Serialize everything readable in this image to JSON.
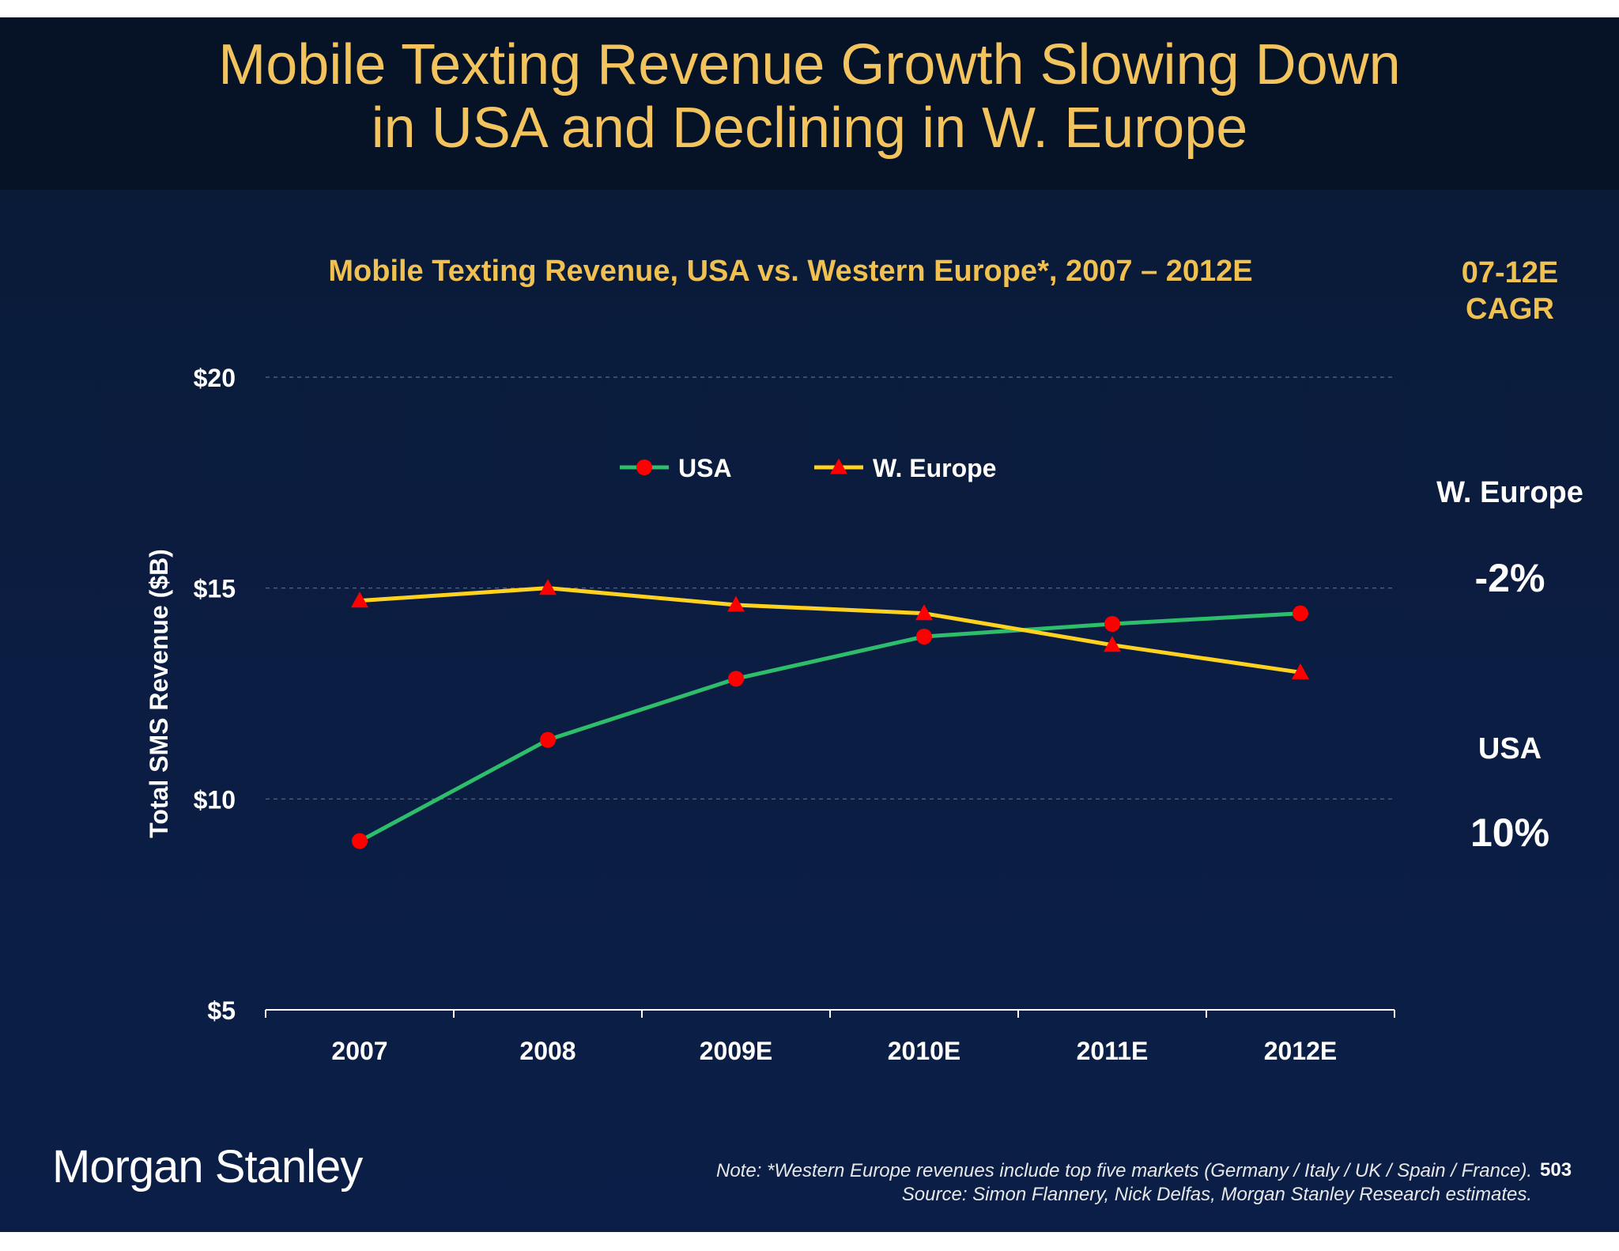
{
  "title": "Mobile Texting Revenue Growth Slowing Down\nin USA and Declining in W. Europe",
  "cagr": {
    "header": "07-12E\nCAGR",
    "items": [
      {
        "region": "W. Europe",
        "value": "-2%"
      },
      {
        "region": "USA",
        "value": "10%"
      }
    ]
  },
  "logo": "Morgan Stanley",
  "footnote": {
    "note": "Note: *Western Europe revenues include top five markets (Germany / Italy / UK / Spain / France).",
    "source": "Source: Simon Flannery, Nick Delfas, Morgan Stanley Research estimates."
  },
  "page_number": "503",
  "colors": {
    "usa_line": "#2ebd6b",
    "europe_line": "#ffd21f",
    "marker": "#ff0000",
    "title": "#f3c35d"
  },
  "chart_data": {
    "type": "line",
    "title": "Mobile Texting Revenue, USA vs. Western Europe*, 2007 – 2012E",
    "ylabel": "Total SMS Revenue ($B)",
    "xlabel": "",
    "categories": [
      "2007",
      "2008",
      "2009E",
      "2010E",
      "2011E",
      "2012E"
    ],
    "ylim": [
      5,
      20
    ],
    "yticks": [
      5,
      10,
      15,
      20
    ],
    "ytick_labels": [
      "$5",
      "$10",
      "$15",
      "$20"
    ],
    "grid": "horizontal dashed",
    "legend": "top-center",
    "series": [
      {
        "name": "USA",
        "marker": "circle",
        "values": [
          9.0,
          11.4,
          12.85,
          13.85,
          14.15,
          14.4
        ]
      },
      {
        "name": "W. Europe",
        "marker": "triangle",
        "values": [
          14.7,
          15.0,
          14.6,
          14.4,
          13.65,
          13.0
        ]
      }
    ]
  }
}
